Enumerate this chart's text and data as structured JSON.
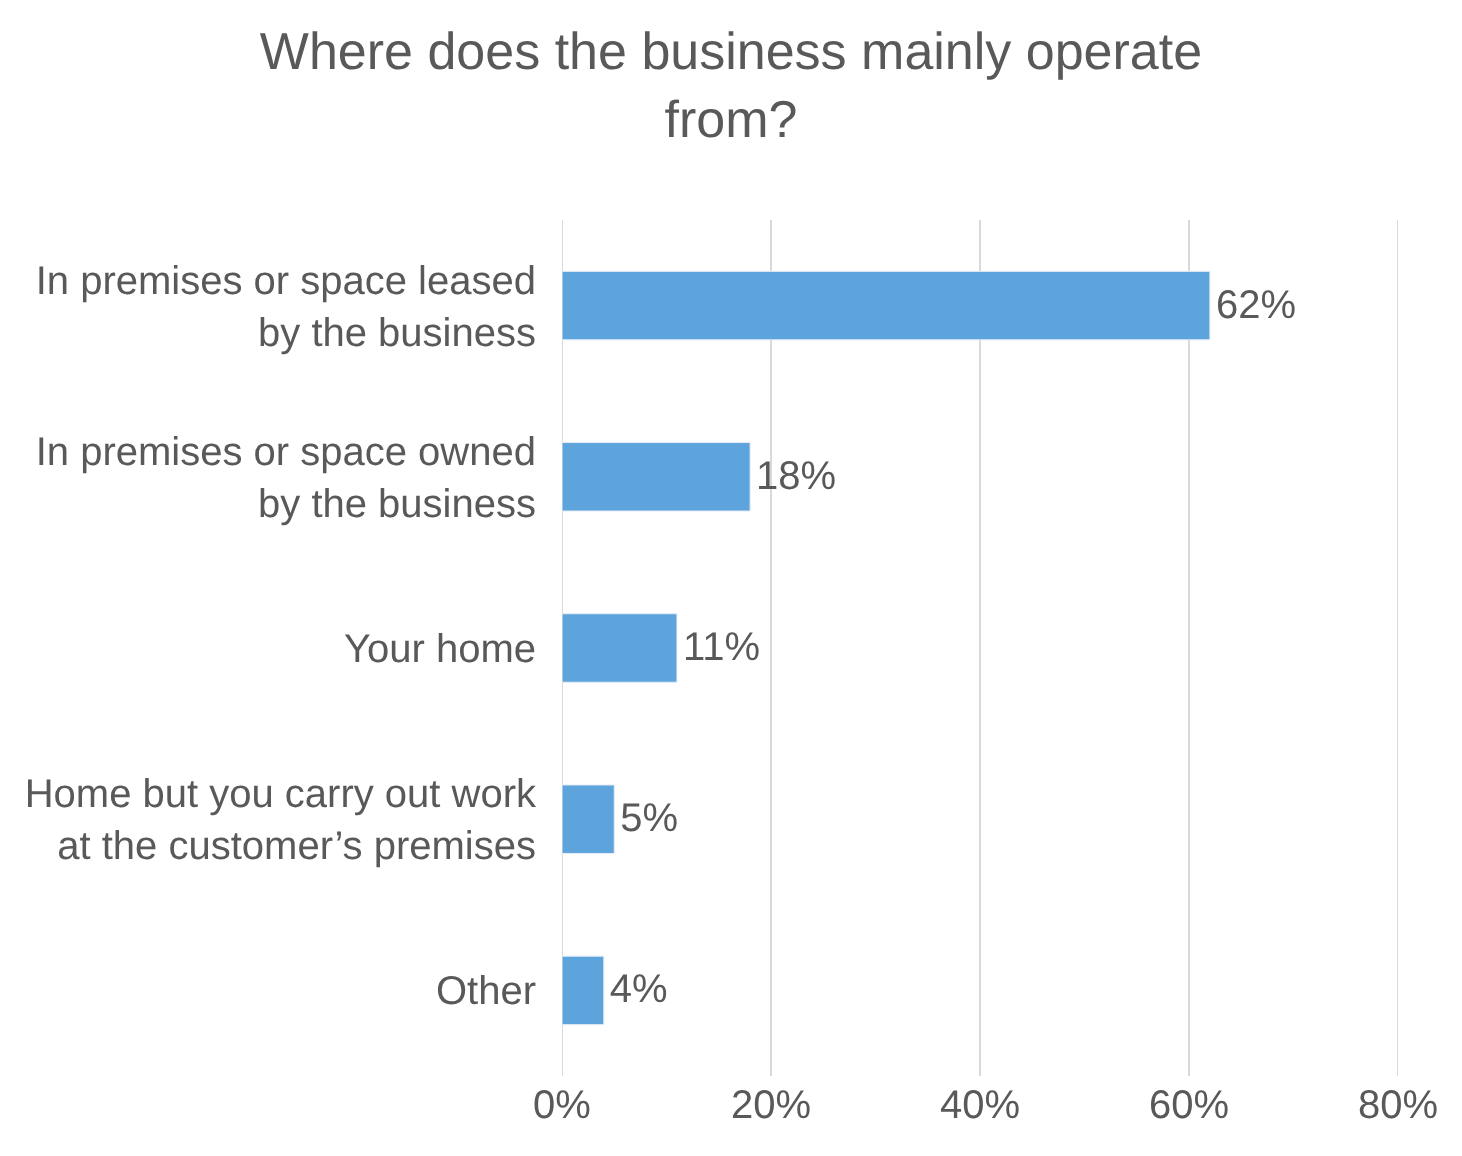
{
  "chart_data": {
    "type": "bar",
    "orientation": "horizontal",
    "title": "Where does the business mainly operate from?",
    "categories": [
      "In premises or space leased by the business",
      "In premises or space owned by the business",
      "Your home",
      "Home but you carry out work at the customer’s premises",
      "Other"
    ],
    "values": [
      62,
      18,
      11,
      5,
      4
    ],
    "value_labels": [
      "62%",
      "18%",
      "11%",
      "5%",
      "4%"
    ],
    "color": "#5ea4dc",
    "xlim": [
      0,
      80
    ],
    "xticks": [
      {
        "value": 0,
        "label": "0%"
      },
      {
        "value": 20,
        "label": "20%"
      },
      {
        "value": 40,
        "label": "40%"
      },
      {
        "value": 60,
        "label": "60%"
      },
      {
        "value": 80,
        "label": "80%"
      }
    ],
    "grid": "x"
  }
}
